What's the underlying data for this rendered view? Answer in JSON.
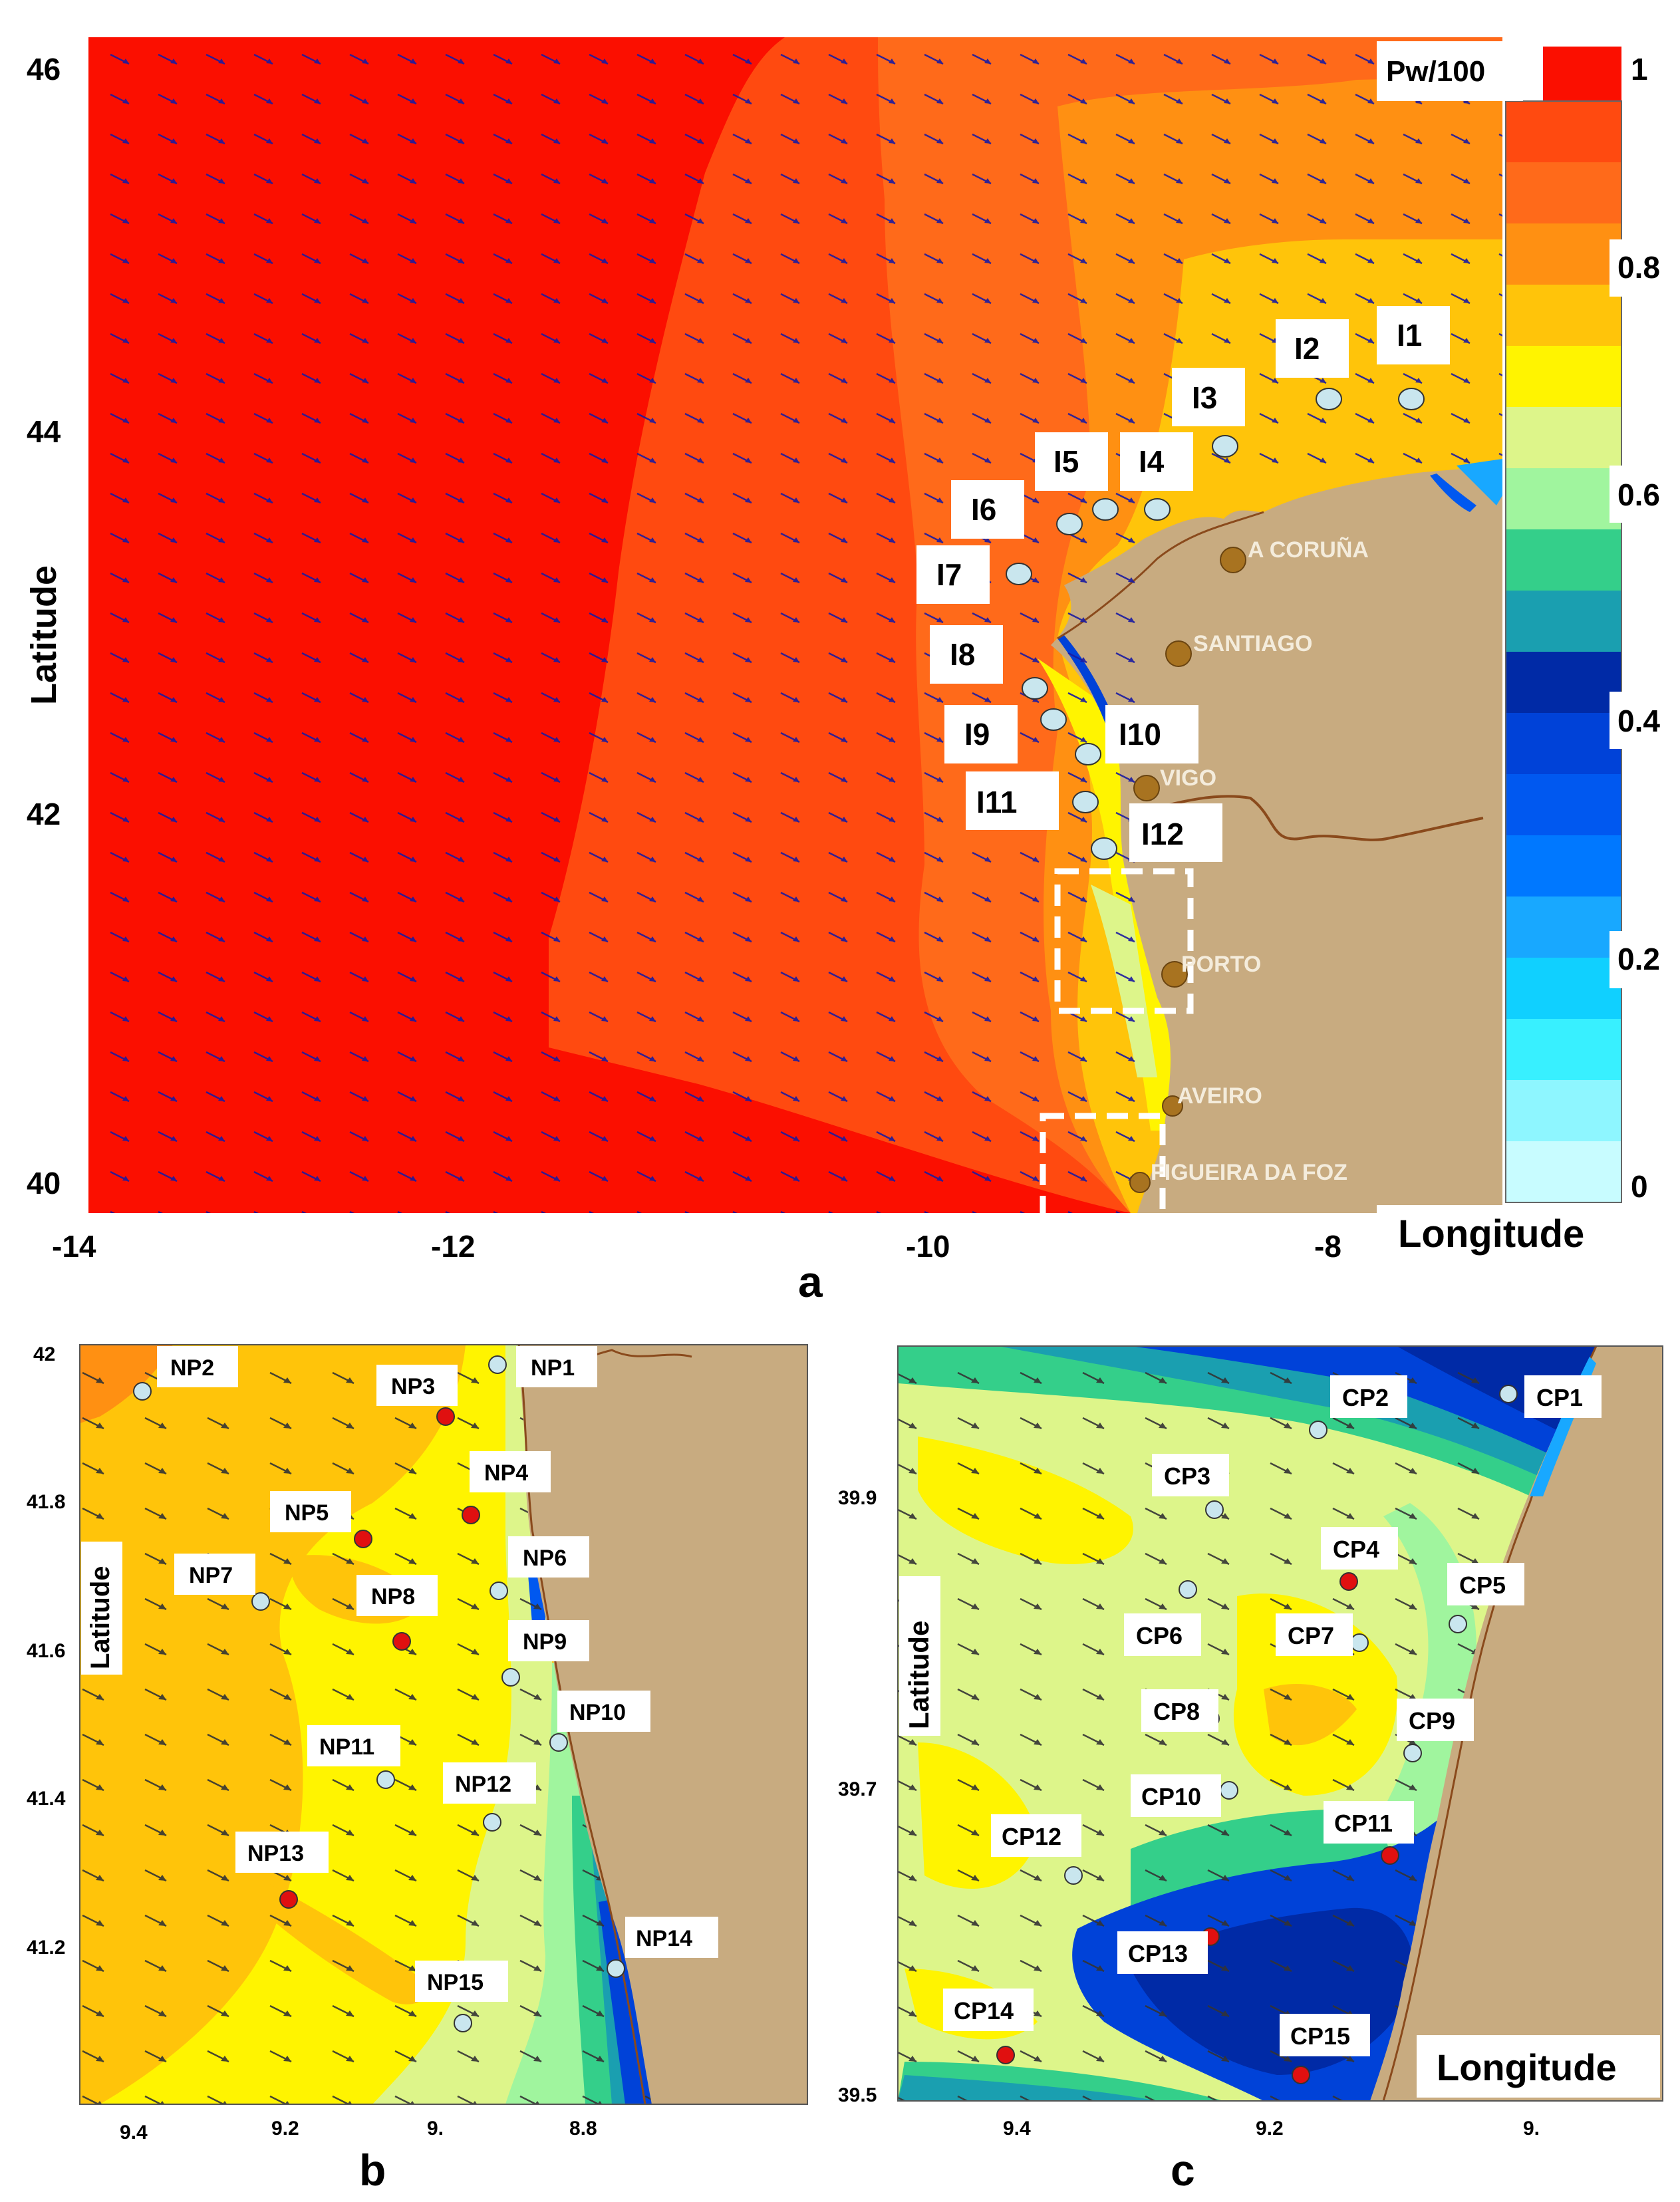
{
  "panel_a": {
    "letter": "a",
    "y_axis_label": "Latitude",
    "x_axis_label": "Longitude",
    "y_ticks": [
      "46",
      "44",
      "42",
      "40"
    ],
    "x_ticks": [
      "-14",
      "-12",
      "-10",
      "-8"
    ],
    "colorbar": {
      "title": "Pw/100",
      "tick_labels": [
        "1",
        "0.8",
        "0.6",
        "0.4",
        "0.2",
        "0"
      ],
      "colors": [
        "#fb0f00",
        "#ff4a10",
        "#ff6a1a",
        "#ff9012",
        "#ffc40a",
        "#fff400",
        "#ddf58a",
        "#a0f59e",
        "#34cf8a",
        "#1a9fb0",
        "#002aa6",
        "#0042d8",
        "#0058f0",
        "#0078ff",
        "#18a8ff",
        "#10d0ff",
        "#38f0ff",
        "#8ef6ff",
        "#c8fcff"
      ]
    },
    "points": [
      {
        "label": "I1"
      },
      {
        "label": "I2"
      },
      {
        "label": "I3"
      },
      {
        "label": "I4"
      },
      {
        "label": "I5"
      },
      {
        "label": "I6"
      },
      {
        "label": "I7"
      },
      {
        "label": "I8"
      },
      {
        "label": "I9"
      },
      {
        "label": "I10"
      },
      {
        "label": "I11"
      },
      {
        "label": "I12"
      }
    ],
    "cities": [
      "A CORUÑA",
      "SANTIAGO",
      "VIGO",
      "PORTO",
      "AVEIRO",
      "FIGUEIRA DA FOZ"
    ]
  },
  "panel_b": {
    "letter": "b",
    "y_axis_label": "Latitude",
    "y_ticks": [
      "42",
      "41.8",
      "41.6",
      "41.4",
      "41.2"
    ],
    "x_ticks": [
      "9.4",
      "9.2",
      "9.",
      "8.8"
    ],
    "points": [
      {
        "label": "NP1",
        "color": "light-blue"
      },
      {
        "label": "NP2",
        "color": "light-blue"
      },
      {
        "label": "NP3",
        "color": "red"
      },
      {
        "label": "NP4",
        "color": "red"
      },
      {
        "label": "NP5",
        "color": "red"
      },
      {
        "label": "NP6",
        "color": "light-blue"
      },
      {
        "label": "NP7",
        "color": "light-blue"
      },
      {
        "label": "NP8",
        "color": "red"
      },
      {
        "label": "NP9",
        "color": "light-blue"
      },
      {
        "label": "NP10",
        "color": "light-blue"
      },
      {
        "label": "NP11",
        "color": "light-blue"
      },
      {
        "label": "NP12",
        "color": "light-blue"
      },
      {
        "label": "NP13",
        "color": "red"
      },
      {
        "label": "NP14",
        "color": "light-blue"
      },
      {
        "label": "NP15",
        "color": "light-blue"
      }
    ]
  },
  "panel_c": {
    "letter": "c",
    "y_axis_label": "Latitude",
    "x_axis_label": "Longitude",
    "y_ticks": [
      "39.9",
      "39.7",
      "39.5"
    ],
    "x_ticks": [
      "9.4",
      "9.2",
      "9."
    ],
    "points": [
      {
        "label": "CP1",
        "color": "light-blue"
      },
      {
        "label": "CP2",
        "color": "light-blue"
      },
      {
        "label": "CP3",
        "color": "light-blue"
      },
      {
        "label": "CP4",
        "color": "red"
      },
      {
        "label": "CP5",
        "color": "light-blue"
      },
      {
        "label": "CP6",
        "color": "light-blue"
      },
      {
        "label": "CP7",
        "color": "light-blue"
      },
      {
        "label": "CP8",
        "color": "light-blue"
      },
      {
        "label": "CP9",
        "color": "light-blue"
      },
      {
        "label": "CP10",
        "color": "light-blue"
      },
      {
        "label": "CP11",
        "color": "red"
      },
      {
        "label": "CP12",
        "color": "light-blue"
      },
      {
        "label": "CP13",
        "color": "red"
      },
      {
        "label": "CP14",
        "color": "red"
      },
      {
        "label": "CP15",
        "color": "red"
      }
    ]
  },
  "colors": {
    "land": "#c8ab80",
    "coast": "#8a4a1c",
    "arrow": "#1a1aa0",
    "point_light": "#c9e6ee",
    "point_red": "#e01010",
    "city_marker": "#a87320"
  }
}
